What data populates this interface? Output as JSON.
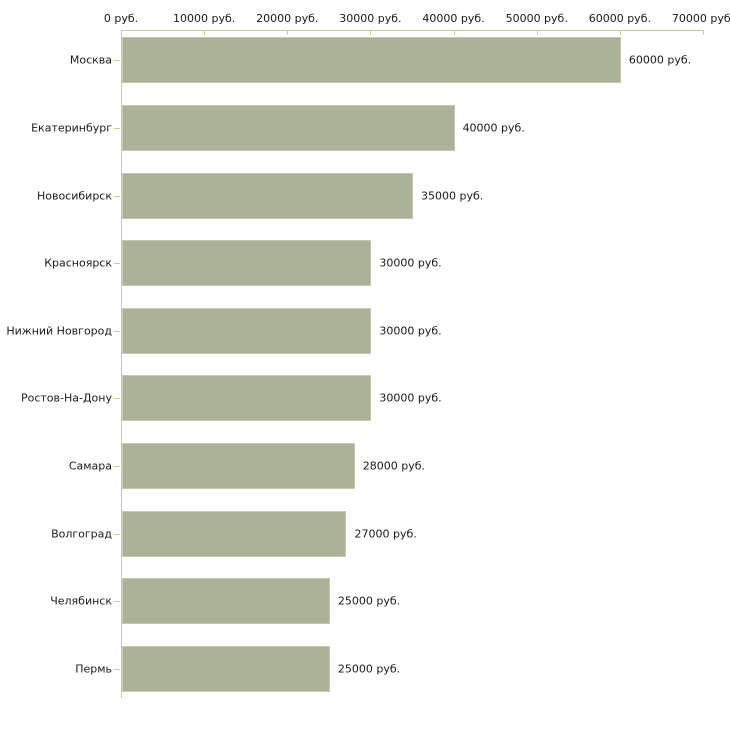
{
  "chart_data": {
    "type": "bar",
    "orientation": "horizontal",
    "title": "",
    "categories": [
      "Москва",
      "Екатеринбург",
      "Новосибирск",
      "Красноярск",
      "Нижний Новгород",
      "Ростов-На-Дону",
      "Самара",
      "Волгоград",
      "Челябинск",
      "Пермь"
    ],
    "values": [
      60000,
      40000,
      35000,
      30000,
      30000,
      30000,
      28000,
      27000,
      25000,
      25000
    ],
    "value_labels": [
      "60000 руб.",
      "40000 руб.",
      "35000 руб.",
      "30000 руб.",
      "30000 руб.",
      "30000 руб.",
      "28000 руб.",
      "27000 руб.",
      "25000 руб.",
      "25000 руб."
    ],
    "unit": "руб.",
    "x_ticks": [
      0,
      10000,
      20000,
      30000,
      40000,
      50000,
      60000,
      70000
    ],
    "x_tick_labels": [
      "0 руб.",
      "10000 руб.",
      "20000 руб.",
      "30000 руб.",
      "40000 руб.",
      "50000 руб.",
      "60000 руб.",
      "70000 руб."
    ],
    "xlim": [
      0,
      70000
    ],
    "grid": false,
    "legend": null,
    "colors": {
      "bar": "#abb298",
      "bar_border": "#c2c8b2",
      "axis_line": "#c8c8b6",
      "tick": "#cccc99",
      "text": "#1a1a1a",
      "background": "#ffffff"
    }
  }
}
